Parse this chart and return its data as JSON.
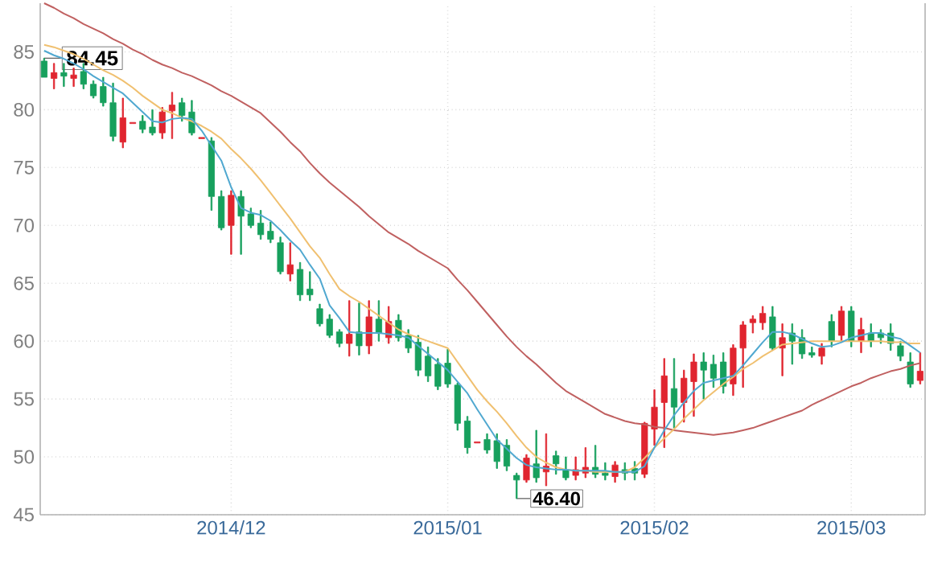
{
  "chart_data": {
    "type": "candlestick",
    "categories": [
      null,
      null,
      null,
      null,
      null,
      null,
      null,
      null,
      null,
      null,
      null,
      null,
      null,
      null,
      null,
      null,
      null,
      null,
      null,
      "2014/12",
      null,
      null,
      null,
      null,
      null,
      null,
      null,
      null,
      null,
      null,
      null,
      null,
      null,
      null,
      null,
      null,
      null,
      null,
      null,
      null,
      null,
      "2015/01",
      null,
      null,
      null,
      null,
      null,
      null,
      null,
      null,
      null,
      null,
      null,
      null,
      null,
      null,
      null,
      null,
      null,
      null,
      null,
      null,
      "2015/02",
      null,
      null,
      null,
      null,
      null,
      null,
      null,
      null,
      null,
      null,
      null,
      null,
      null,
      null,
      null,
      null,
      null,
      null,
      null,
      "2015/03",
      null,
      null,
      null,
      null,
      null,
      null,
      null
    ],
    "ohlc": [
      [
        84.2,
        84.45,
        82.8,
        82.8
      ],
      [
        82.7,
        84.0,
        81.8,
        83.2
      ],
      [
        83.2,
        84.0,
        82.0,
        82.9
      ],
      [
        82.7,
        83.6,
        82.0,
        83.0
      ],
      [
        83.3,
        84.0,
        81.8,
        82.2
      ],
      [
        82.2,
        82.5,
        81.0,
        81.2
      ],
      [
        82.0,
        82.8,
        80.3,
        80.6
      ],
      [
        80.6,
        82.3,
        77.3,
        77.7
      ],
      [
        77.2,
        81.0,
        76.7,
        79.3
      ],
      [
        78.8,
        78.9,
        78.8,
        78.9
      ],
      [
        79.0,
        79.5,
        78.0,
        78.3
      ],
      [
        78.5,
        80.0,
        77.8,
        78.0
      ],
      [
        78.0,
        80.2,
        77.5,
        79.8
      ],
      [
        79.9,
        81.5,
        77.5,
        80.4
      ],
      [
        80.6,
        81.0,
        79.0,
        79.5
      ],
      [
        79.8,
        80.8,
        77.8,
        78.0
      ],
      [
        77.5,
        77.6,
        77.5,
        77.6
      ],
      [
        77.3,
        77.6,
        71.3,
        72.5
      ],
      [
        72.5,
        73.0,
        69.6,
        69.8
      ],
      [
        70.0,
        73.0,
        67.5,
        72.6
      ],
      [
        72.5,
        73.0,
        67.5,
        70.8
      ],
      [
        71.0,
        71.5,
        69.8,
        70.0
      ],
      [
        70.2,
        71.3,
        68.8,
        69.2
      ],
      [
        69.5,
        70.3,
        68.5,
        68.8
      ],
      [
        68.5,
        69.0,
        65.8,
        66.0
      ],
      [
        65.8,
        68.5,
        65.2,
        66.6
      ],
      [
        66.2,
        66.8,
        63.5,
        64.0
      ],
      [
        64.5,
        66.0,
        63.5,
        64.0
      ],
      [
        62.8,
        63.2,
        61.3,
        61.5
      ],
      [
        61.9,
        62.3,
        60.3,
        60.5
      ],
      [
        60.8,
        61.0,
        59.5,
        59.8
      ],
      [
        59.8,
        63.5,
        58.7,
        60.6
      ],
      [
        60.8,
        63.3,
        58.8,
        59.6
      ],
      [
        59.6,
        63.5,
        58.9,
        62.1
      ],
      [
        61.9,
        63.5,
        60.0,
        60.7
      ],
      [
        60.3,
        63.0,
        59.8,
        61.7
      ],
      [
        61.8,
        62.3,
        60.0,
        60.3
      ],
      [
        60.5,
        61.0,
        59.0,
        59.4
      ],
      [
        59.9,
        60.5,
        57.0,
        57.5
      ],
      [
        58.7,
        59.5,
        56.5,
        57.0
      ],
      [
        58.0,
        58.5,
        55.8,
        56.1
      ],
      [
        58.1,
        59.3,
        56.0,
        56.3
      ],
      [
        56.2,
        56.4,
        52.3,
        52.9
      ],
      [
        53.1,
        53.5,
        50.3,
        50.8
      ],
      [
        51.2,
        51.3,
        51.2,
        51.3
      ],
      [
        51.5,
        52.0,
        50.3,
        50.6
      ],
      [
        51.4,
        52.0,
        49.0,
        49.6
      ],
      [
        51.0,
        51.5,
        48.8,
        49.2
      ],
      [
        48.4,
        48.6,
        46.4,
        48.0
      ],
      [
        48.0,
        50.2,
        47.8,
        49.9
      ],
      [
        49.4,
        52.3,
        47.8,
        48.2
      ],
      [
        48.7,
        52.0,
        47.5,
        49.2
      ],
      [
        50.1,
        50.5,
        48.5,
        49.4
      ],
      [
        48.9,
        50.0,
        48.0,
        48.2
      ],
      [
        48.4,
        50.0,
        48.0,
        48.9
      ],
      [
        48.6,
        50.8,
        48.2,
        49.1
      ],
      [
        49.1,
        51.0,
        48.2,
        48.5
      ],
      [
        48.6,
        49.5,
        48.0,
        48.4
      ],
      [
        48.3,
        49.6,
        47.8,
        49.3
      ],
      [
        48.9,
        49.5,
        48.0,
        48.6
      ],
      [
        49.0,
        49.6,
        48.0,
        48.6
      ],
      [
        48.5,
        53.0,
        48.2,
        52.9
      ],
      [
        52.4,
        55.8,
        51.0,
        54.3
      ],
      [
        54.7,
        58.5,
        50.8,
        57.0
      ],
      [
        55.9,
        58.5,
        52.5,
        54.3
      ],
      [
        54.7,
        57.5,
        53.0,
        56.8
      ],
      [
        56.5,
        58.9,
        53.5,
        58.2
      ],
      [
        58.2,
        59.0,
        55.0,
        57.5
      ],
      [
        58.0,
        58.8,
        56.0,
        56.8
      ],
      [
        58.2,
        59.0,
        55.5,
        56.1
      ],
      [
        56.3,
        59.7,
        55.3,
        59.4
      ],
      [
        59.4,
        61.7,
        56.0,
        61.4
      ],
      [
        61.6,
        62.2,
        60.7,
        61.9
      ],
      [
        61.6,
        63.0,
        61.0,
        62.4
      ],
      [
        62.1,
        63.0,
        59.2,
        59.4
      ],
      [
        59.4,
        61.5,
        57.0,
        60.3
      ],
      [
        60.7,
        61.5,
        58.0,
        60.0
      ],
      [
        60.3,
        61.0,
        58.5,
        58.9
      ],
      [
        59.0,
        59.5,
        58.6,
        58.8
      ],
      [
        58.7,
        59.8,
        58.0,
        59.4
      ],
      [
        61.7,
        62.3,
        59.5,
        60.0
      ],
      [
        60.5,
        63.0,
        60.0,
        62.6
      ],
      [
        62.6,
        63.0,
        59.5,
        60.0
      ],
      [
        60.0,
        62.0,
        59.0,
        61.0
      ],
      [
        60.7,
        61.5,
        59.5,
        60.0
      ],
      [
        60.7,
        61.0,
        59.8,
        60.3
      ],
      [
        60.7,
        61.5,
        59.2,
        59.8
      ],
      [
        59.6,
        60.0,
        58.3,
        58.7
      ],
      [
        58.2,
        59.0,
        56.0,
        56.3
      ],
      [
        56.6,
        59.0,
        56.3,
        57.4
      ]
    ],
    "colors": [
      "#17a05d",
      "#e0252f",
      "#17a05d",
      "#e0252f",
      "#17a05d",
      "#17a05d",
      "#17a05d",
      "#17a05d",
      "#e0252f",
      "#e0252f",
      "#17a05d",
      "#17a05d",
      "#e0252f",
      "#e0252f",
      "#17a05d",
      "#17a05d",
      "#e0252f",
      "#17a05d",
      "#17a05d",
      "#e0252f",
      "#17a05d",
      "#17a05d",
      "#17a05d",
      "#17a05d",
      "#17a05d",
      "#e0252f",
      "#17a05d",
      "#17a05d",
      "#17a05d",
      "#17a05d",
      "#17a05d",
      "#e0252f",
      "#17a05d",
      "#e0252f",
      "#17a05d",
      "#e0252f",
      "#17a05d",
      "#17a05d",
      "#17a05d",
      "#17a05d",
      "#17a05d",
      "#17a05d",
      "#17a05d",
      "#17a05d",
      "#e0252f",
      "#17a05d",
      "#17a05d",
      "#17a05d",
      "#17a05d",
      "#e0252f",
      "#17a05d",
      "#e0252f",
      "#17a05d",
      "#17a05d",
      "#e0252f",
      "#e0252f",
      "#17a05d",
      "#17a05d",
      "#e0252f",
      "#17a05d",
      "#17a05d",
      "#e0252f",
      "#e0252f",
      "#e0252f",
      "#17a05d",
      "#e0252f",
      "#e0252f",
      "#17a05d",
      "#17a05d",
      "#17a05d",
      "#e0252f",
      "#e0252f",
      "#e0252f",
      "#e0252f",
      "#17a05d",
      "#e0252f",
      "#17a05d",
      "#17a05d",
      "#17a05d",
      "#e0252f",
      "#17a05d",
      "#e0252f",
      "#17a05d",
      "#e0252f",
      "#17a05d",
      "#17a05d",
      "#17a05d",
      "#17a05d",
      "#17a05d",
      "#e0252f"
    ],
    "series": [
      {
        "type": "line",
        "color": "#c06060",
        "values": [
          89.2,
          88.8,
          88.3,
          87.9,
          87.4,
          87.0,
          86.6,
          86.1,
          85.7,
          85.2,
          84.8,
          84.3,
          83.9,
          83.6,
          83.2,
          82.9,
          82.5,
          82.1,
          81.6,
          81.2,
          80.7,
          80.2,
          79.7,
          78.9,
          78.1,
          77.2,
          76.4,
          75.4,
          74.5,
          73.7,
          73.0,
          72.3,
          71.6,
          70.8,
          70.1,
          69.4,
          68.9,
          68.4,
          67.8,
          67.3,
          66.8,
          66.3,
          65.3,
          64.4,
          63.4,
          62.4,
          61.4,
          60.4,
          59.5,
          58.7,
          58.0,
          57.2,
          56.4,
          55.7,
          55.2,
          54.7,
          54.2,
          53.7,
          53.4,
          53.1,
          52.9,
          52.8,
          52.6,
          52.5,
          52.3,
          52.2,
          52.1,
          52.0,
          51.9,
          52.0,
          52.1,
          52.3,
          52.5,
          52.8,
          53.1,
          53.4,
          53.7,
          54.0,
          54.5,
          54.9,
          55.3,
          55.7,
          56.1,
          56.4,
          56.8,
          57.1,
          57.4,
          57.6,
          57.9,
          58.1
        ]
      },
      {
        "type": "line",
        "color": "#f0c070",
        "values": [
          85.6,
          85.4,
          85.1,
          84.8,
          84.4,
          83.9,
          83.4,
          83.0,
          82.5,
          81.9,
          81.2,
          80.6,
          80.0,
          79.7,
          79.3,
          79.0,
          78.6,
          78.1,
          77.5,
          76.6,
          75.8,
          74.9,
          73.9,
          72.8,
          71.7,
          70.6,
          69.4,
          68.2,
          67.2,
          65.8,
          64.5,
          63.9,
          63.4,
          62.8,
          62.2,
          61.6,
          61.0,
          60.6,
          60.3,
          60.0,
          59.7,
          59.4,
          58.2,
          57.0,
          55.8,
          54.8,
          53.9,
          52.9,
          51.8,
          50.8,
          50.0,
          49.5,
          49.1,
          48.9,
          48.8,
          48.8,
          48.7,
          48.7,
          48.7,
          48.7,
          49.1,
          49.9,
          50.8,
          51.6,
          52.4,
          53.3,
          54.1,
          54.9,
          55.6,
          56.3,
          56.9,
          57.6,
          58.1,
          58.7,
          59.2,
          59.7,
          59.8,
          59.9,
          60.0,
          60.0,
          60.0,
          60.0,
          60.0,
          60.0,
          60.0,
          60.0,
          59.9,
          59.9,
          59.8,
          59.8
        ]
      },
      {
        "type": "line",
        "color": "#50a8d0",
        "values": [
          85.1,
          84.7,
          84.4,
          84.0,
          83.5,
          82.9,
          82.4,
          81.9,
          81.4,
          80.6,
          79.8,
          79.0,
          78.9,
          79.2,
          79.3,
          79.2,
          78.2,
          76.9,
          75.6,
          73.3,
          71.5,
          71.1,
          70.9,
          70.4,
          69.6,
          68.7,
          67.9,
          66.6,
          65.4,
          63.1,
          62.0,
          60.8,
          60.7,
          60.7,
          60.7,
          60.6,
          60.5,
          60.3,
          59.6,
          58.9,
          58.2,
          57.5,
          56.5,
          55.5,
          54.1,
          52.8,
          51.5,
          50.7,
          49.9,
          49.3,
          49.1,
          49.0,
          48.9,
          48.9,
          48.8,
          48.8,
          48.8,
          48.8,
          48.7,
          48.7,
          48.7,
          49.2,
          50.8,
          52.3,
          53.6,
          54.7,
          55.7,
          56.4,
          56.6,
          56.8,
          57.0,
          57.9,
          58.9,
          59.9,
          60.8,
          60.8,
          60.6,
          60.2,
          59.8,
          59.5,
          59.6,
          59.9,
          60.3,
          60.5,
          60.7,
          60.7,
          60.4,
          60.2,
          59.6,
          59.0
        ]
      }
    ],
    "ylim": [
      45,
      89.2
    ],
    "yticks": [
      45,
      50,
      55,
      60,
      65,
      70,
      75,
      80,
      85
    ],
    "grid": true,
    "annotations": [
      {
        "text": "84.45",
        "y": 84.45
      },
      {
        "text": "46.40",
        "y": 46.4
      }
    ]
  }
}
